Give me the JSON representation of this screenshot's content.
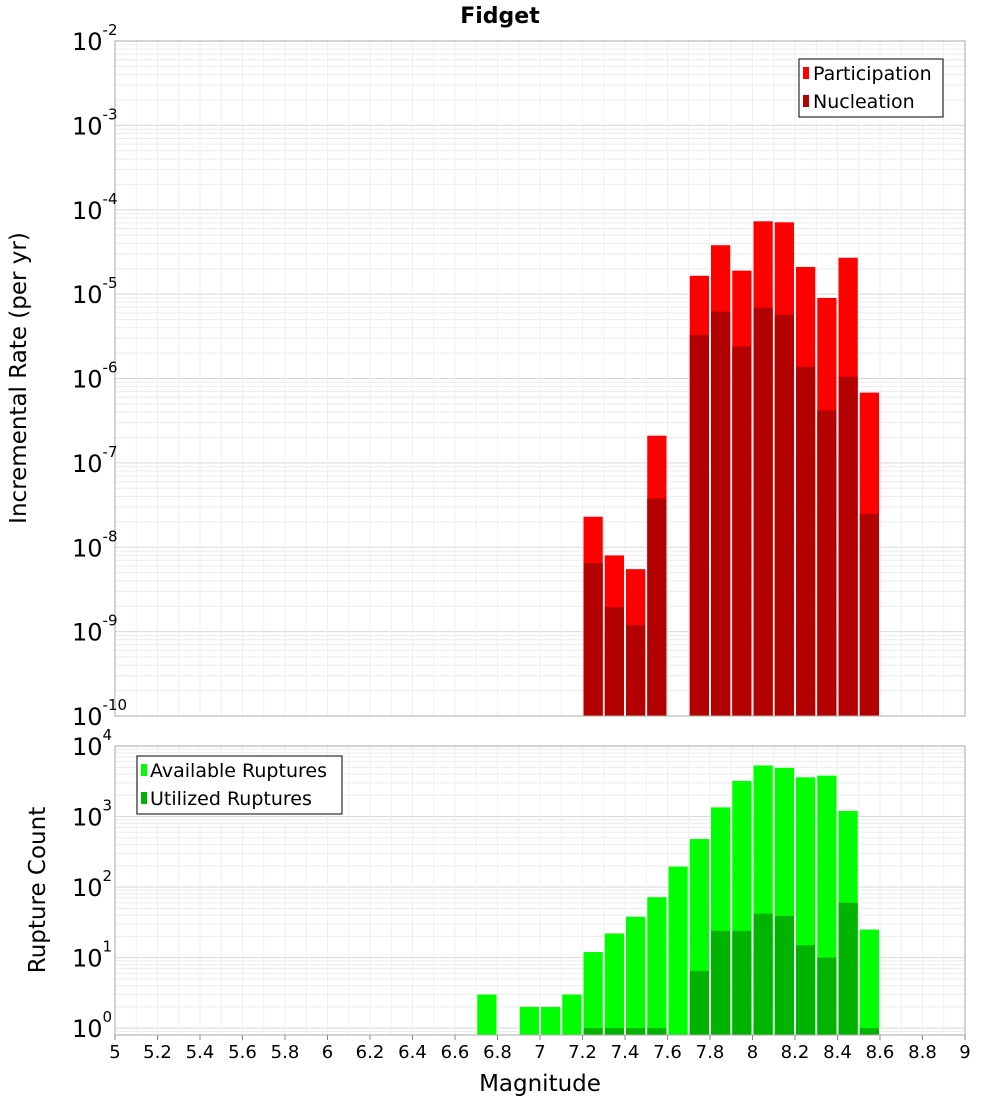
{
  "chart_data": [
    {
      "type": "bar",
      "title": "Fidget",
      "ylabel": "Incremental Rate (per yr)",
      "xlabel": "",
      "yscale": "log",
      "ylim": [
        1e-10,
        0.01
      ],
      "xlim": [
        5,
        9
      ],
      "legend_position": "top-right",
      "stacked_overlay": true,
      "x": [
        7.25,
        7.35,
        7.45,
        7.55,
        7.75,
        7.85,
        7.95,
        8.05,
        8.15,
        8.25,
        8.35,
        8.45,
        8.55
      ],
      "series": [
        {
          "name": "Participation",
          "color": "#ff0000",
          "values": [
            2.3e-08,
            8e-09,
            5.5e-09,
            2.1e-07,
            1.65e-05,
            3.8e-05,
            1.9e-05,
            7.3e-05,
            7.1e-05,
            2.1e-05,
            9e-06,
            2.7e-05,
            6.8e-07
          ]
        },
        {
          "name": "Nucleation",
          "color": "#b30000",
          "values": [
            6.5e-09,
            1.95e-09,
            1.2e-09,
            3.8e-08,
            3.3e-06,
            6.2e-06,
            2.4e-06,
            6.9e-06,
            5.7e-06,
            1.38e-06,
            4.2e-07,
            1.05e-06,
            2.5e-08
          ]
        }
      ]
    },
    {
      "type": "bar",
      "title": "",
      "ylabel": "Rupture Count",
      "xlabel": "Magnitude",
      "yscale": "log",
      "ylim": [
        0.8,
        10000
      ],
      "xlim": [
        5,
        9
      ],
      "legend_position": "top-left",
      "stacked_overlay": true,
      "x": [
        6.75,
        6.95,
        7.05,
        7.15,
        7.25,
        7.35,
        7.45,
        7.55,
        7.65,
        7.75,
        7.85,
        7.95,
        8.05,
        8.15,
        8.25,
        8.35,
        8.45,
        8.55
      ],
      "series": [
        {
          "name": "Available Ruptures",
          "color": "#00ff00",
          "values": [
            3,
            2,
            2,
            3,
            12,
            22,
            38,
            72,
            195,
            480,
            1350,
            3200,
            5300,
            4900,
            3600,
            3800,
            1200,
            25
          ]
        },
        {
          "name": "Utilized Ruptures",
          "color": "#00b300",
          "values": [
            0,
            0,
            0,
            0,
            1,
            1,
            1,
            1,
            0,
            6.5,
            24,
            24,
            42,
            39,
            15,
            10,
            60,
            1
          ]
        }
      ]
    }
  ],
  "x_ticks": [
    "5",
    "5.2",
    "5.4",
    "5.6",
    "5.8",
    "6",
    "6.2",
    "6.4",
    "6.6",
    "6.8",
    "7",
    "7.2",
    "7.4",
    "7.6",
    "7.8",
    "8",
    "8.2",
    "8.4",
    "8.6",
    "8.8",
    "9"
  ],
  "top_y_ticks": {
    "base": "10",
    "exponents": [
      "-2",
      "-3",
      "-4",
      "-5",
      "-6",
      "-7",
      "-8",
      "-9",
      "-10"
    ]
  },
  "bottom_y_ticks": {
    "base": "10",
    "exponents": [
      "4",
      "3",
      "2",
      "1",
      "0"
    ]
  }
}
